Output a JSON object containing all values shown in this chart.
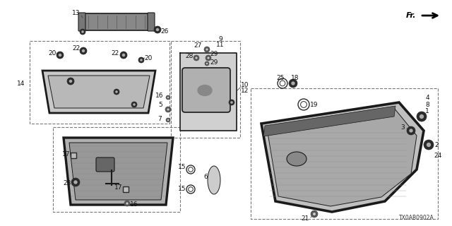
{
  "bg_color": "#ffffff",
  "diagram_code": "TX0AB0902A",
  "line_color": "#1a1a1a",
  "gray_fill": "#d8d8d8",
  "dark_gray": "#2a2a2a"
}
